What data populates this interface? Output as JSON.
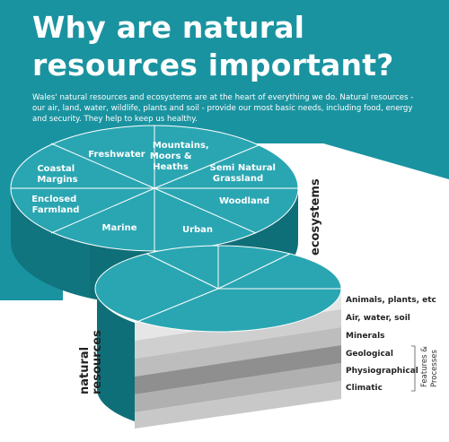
{
  "title": "Why are natural resources important?",
  "intro": "Wales' natural resources and ecosystems are at the heart of everything we do. Natural resources - our air, land, water, wildlife, plants and soil - provide our most basic needs, including food, energy and security. They help to keep us healthy.",
  "ecosystems": {
    "title": "ecosystems",
    "segments": [
      {
        "line1": "Freshwater",
        "line2": "",
        "line3": ""
      },
      {
        "line1": "Mountains,",
        "line2": "Moors &",
        "line3": "Heaths"
      },
      {
        "line1": "Semi Natural",
        "line2": "Grassland",
        "line3": ""
      },
      {
        "line1": "Woodland",
        "line2": "",
        "line3": ""
      },
      {
        "line1": "Urban",
        "line2": "",
        "line3": ""
      },
      {
        "line1": "Marine",
        "line2": "",
        "line3": ""
      },
      {
        "line1": "Enclosed",
        "line2": "Farmland",
        "line3": ""
      },
      {
        "line1": "Coastal",
        "line2": "Margins",
        "line3": ""
      }
    ]
  },
  "natural_resources": {
    "title_line1": "natural",
    "title_line2": "resources",
    "layers": [
      "Animals, plants, etc",
      "Air, water, soil",
      "Minerals",
      "Geological",
      "Physiographical",
      "Climatic"
    ],
    "bracket_label_line1": "Features &",
    "bracket_label_line2": "Processes"
  },
  "colors": {
    "teal": "#1a93a0",
    "teal_light": "#2aa6b2",
    "teal_dark": "#137a85",
    "teal_side": "#0f6f78",
    "layer_shades": [
      "#e6e6e6",
      "#cfcfcf",
      "#bdbdbd",
      "#8f8f8f",
      "#b0b0b0",
      "#c8c8c8"
    ]
  }
}
